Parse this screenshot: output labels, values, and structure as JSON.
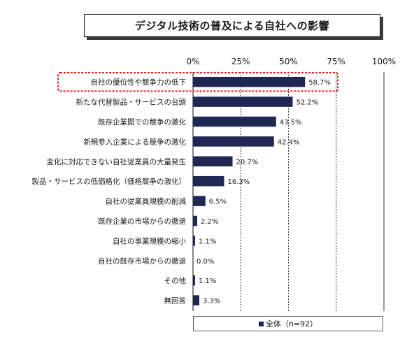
{
  "chart_data": {
    "type": "bar",
    "orientation": "horizontal",
    "title": "デジタル技術の普及による自社への影響",
    "categories": [
      "自社の優位性や競争力の低下",
      "新たな代替製品・サービスの台頭",
      "既存企業間での競争の激化",
      "新規参入企業による競争の激化",
      "変化に対応できない自社従業員の大量発生",
      "製品・サービスの低価格化（価格競争の激化）",
      "自社の従業員規模の削減",
      "既存企業の市場からの撤退",
      "自社の事業規模の縮小",
      "自社の既存市場からの撤退",
      "その他",
      "無回答"
    ],
    "series": [
      {
        "name": "全体（n=92）",
        "values": [
          58.7,
          52.2,
          43.5,
          42.4,
          20.7,
          16.3,
          6.5,
          2.2,
          1.1,
          0.0,
          1.1,
          3.3
        ],
        "labels": [
          "58.7%",
          "52.2%",
          "43.5%",
          "42.4%",
          "20.7%",
          "16.3%",
          "6.5%",
          "2.2%",
          "1.1%",
          "0.0%",
          "1.1%",
          "3.3%"
        ]
      }
    ],
    "xlim": [
      0,
      100
    ],
    "ticks": [
      0,
      25,
      50,
      75,
      100
    ],
    "tick_labels": [
      "0%",
      "25%",
      "50%",
      "75%",
      "100%"
    ],
    "grid": true,
    "legend_position": "bottom",
    "highlighted_category_index": 0,
    "colors": {
      "bar": "#1f2752",
      "highlight": "#e02020",
      "grid": "#333333"
    }
  }
}
